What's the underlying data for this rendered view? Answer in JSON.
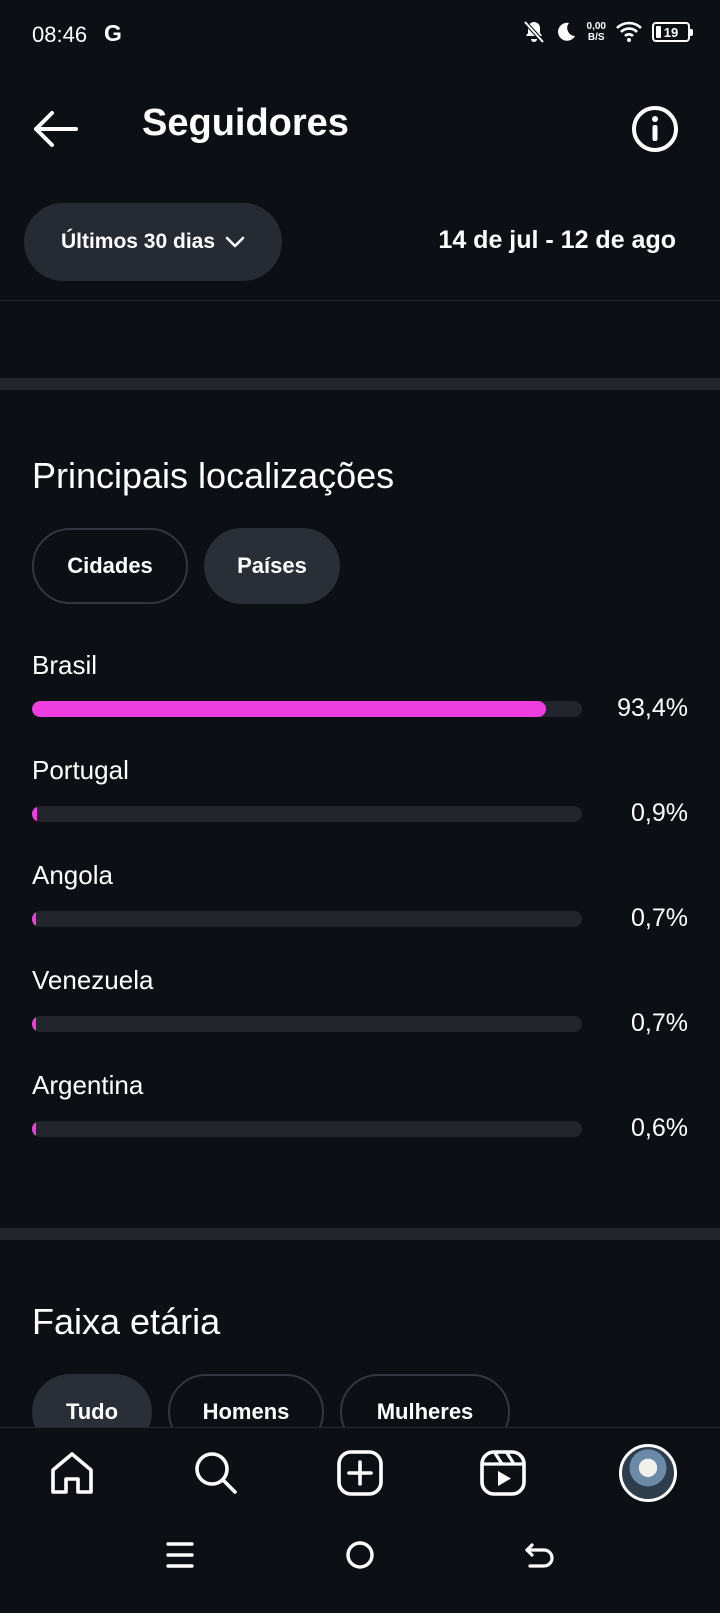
{
  "status_bar": {
    "time": "08:46",
    "g": "G",
    "net_speed_value": "0,00",
    "net_speed_unit": "B/S",
    "battery": "19"
  },
  "header": {
    "title": "Seguidores",
    "range_label": "Últimos 30 dias",
    "date_range": "14 de jul - 12 de ago"
  },
  "locations": {
    "title": "Principais localizações",
    "tabs": [
      {
        "label": "Cidades",
        "selected": false
      },
      {
        "label": "Países",
        "selected": true
      }
    ],
    "items": [
      {
        "name": "Brasil",
        "percent_label": "93,4%",
        "percent": 93.4
      },
      {
        "name": "Portugal",
        "percent_label": "0,9%",
        "percent": 0.9
      },
      {
        "name": "Angola",
        "percent_label": "0,7%",
        "percent": 0.7
      },
      {
        "name": "Venezuela",
        "percent_label": "0,7%",
        "percent": 0.7
      },
      {
        "name": "Argentina",
        "percent_label": "0,6%",
        "percent": 0.6
      }
    ]
  },
  "age": {
    "title": "Faixa etária",
    "tabs": [
      {
        "label": "Tudo",
        "selected": true
      },
      {
        "label": "Homens",
        "selected": false
      },
      {
        "label": "Mulheres",
        "selected": false
      }
    ]
  },
  "colors": {
    "accent": "#ee3ee0",
    "background": "#0c0f14"
  },
  "icons": {
    "nav": [
      "home-icon",
      "search-icon",
      "create-icon",
      "reels-icon",
      "profile-avatar"
    ],
    "system": [
      "menu-icon",
      "home-circle-icon",
      "back-gesture-icon"
    ]
  }
}
